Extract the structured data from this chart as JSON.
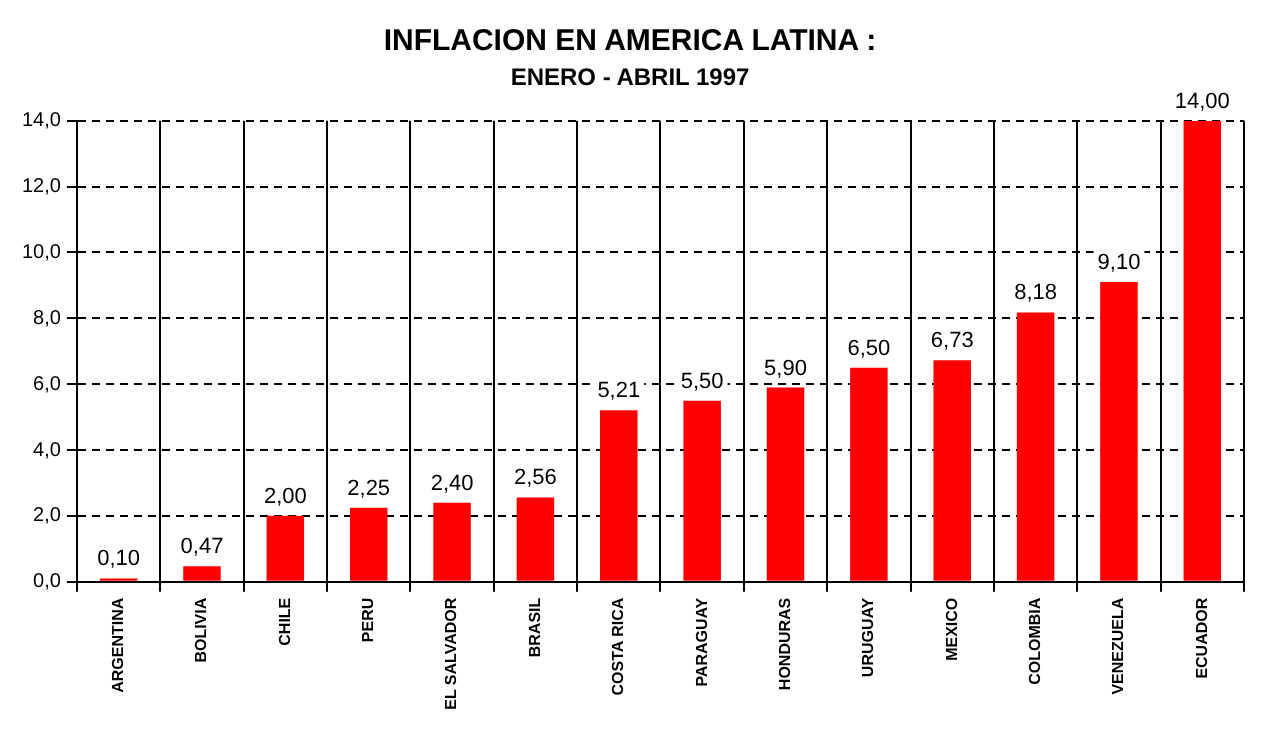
{
  "chart_data": {
    "type": "bar",
    "title": "INFLACION EN AMERICA LATINA :",
    "subtitle": "ENERO - ABRIL 1997",
    "categories": [
      "ARGENTINA",
      "BOLIVIA",
      "CHILE",
      "PERU",
      "EL SALVADOR",
      "BRASIL",
      "COSTA RICA",
      "PARAGUAY",
      "HONDURAS",
      "URUGUAY",
      "MEXICO",
      "COLOMBIA",
      "VENEZUELA",
      "ECUADOR"
    ],
    "values": [
      0.1,
      0.47,
      2.0,
      2.25,
      2.4,
      2.56,
      5.21,
      5.5,
      5.9,
      6.5,
      6.73,
      8.18,
      9.1,
      14.0
    ],
    "value_labels": [
      "0,10",
      "0,47",
      "2,00",
      "2,25",
      "2,40",
      "2,56",
      "5,21",
      "5,50",
      "5,90",
      "6,50",
      "6,73",
      "8,18",
      "9,10",
      "14,00"
    ],
    "color": "#ff0000",
    "ylim": [
      0,
      14
    ],
    "yticks": [
      {
        "value": 0,
        "label": "0,0"
      },
      {
        "value": 2,
        "label": "2,0"
      },
      {
        "value": 4,
        "label": "4,0"
      },
      {
        "value": 6,
        "label": "6,0"
      },
      {
        "value": 8,
        "label": "8,0"
      },
      {
        "value": 10,
        "label": "10,0"
      },
      {
        "value": 12,
        "label": "12,0"
      },
      {
        "value": 14,
        "label": "14,0"
      }
    ],
    "grid": true,
    "legend": false
  }
}
